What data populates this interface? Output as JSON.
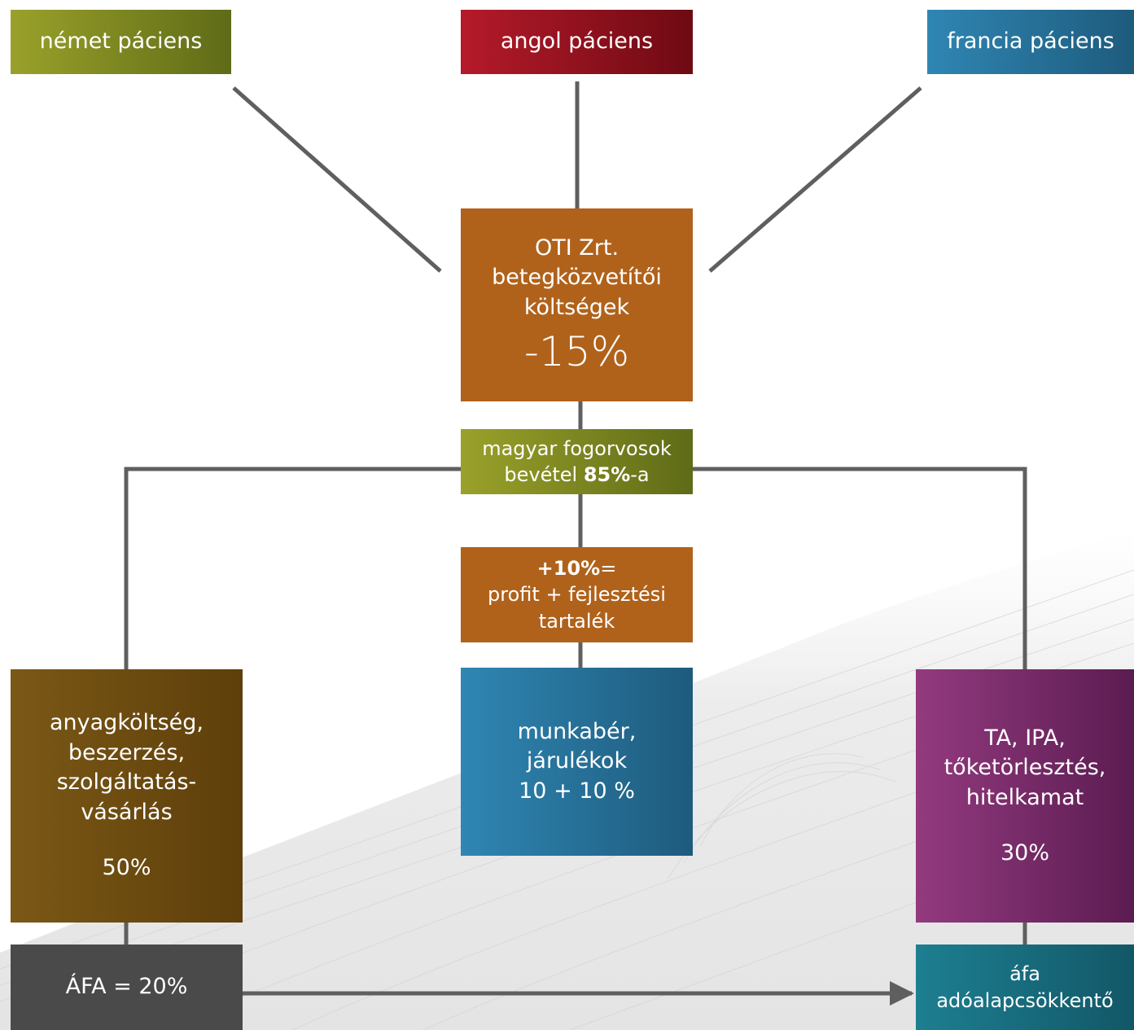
{
  "patients": {
    "german": "német páciens",
    "english": "angol páciens",
    "french": "francia páciens"
  },
  "oti": {
    "line1": "OTI Zrt.",
    "line2": "betegközvetítői",
    "line3": "költségek",
    "percent": "-15%"
  },
  "dentists": {
    "line1": "magyar fogorvosok",
    "line2_prefix": "bevétel ",
    "line2_bold": "85%",
    "line2_suffix": "-a"
  },
  "profit": {
    "line1_bold": "+10%",
    "line1_suffix": "=",
    "line2": "profit + fejlesztési",
    "line3": "tartalék"
  },
  "materials": {
    "line1": "anyagköltség,",
    "line2": "beszerzés,",
    "line3": "szolgáltatás-",
    "line4": "vásárlás",
    "percent": "50%"
  },
  "wages": {
    "line1": "munkabér,",
    "line2": "járulékok",
    "line3": "10 + 10 %"
  },
  "taxes": {
    "line1": "TA, IPA,",
    "line2": "tőketörlesztés,",
    "line3": "hitelkamat",
    "percent": "30%"
  },
  "vat": {
    "label": "ÁFA = 20%"
  },
  "vat_reducing": {
    "line1": "áfa",
    "line2": "adóalapcsökkentő"
  },
  "colors": {
    "connector": "#5f5f5f",
    "olive": "#7f8a20",
    "red": "#9a1320",
    "blue": "#2a769f",
    "orange": "#b0621b",
    "brown": "#6e4c11",
    "purple": "#7a2c6a",
    "dark": "#4a4a4a",
    "teal": "#186f80"
  }
}
